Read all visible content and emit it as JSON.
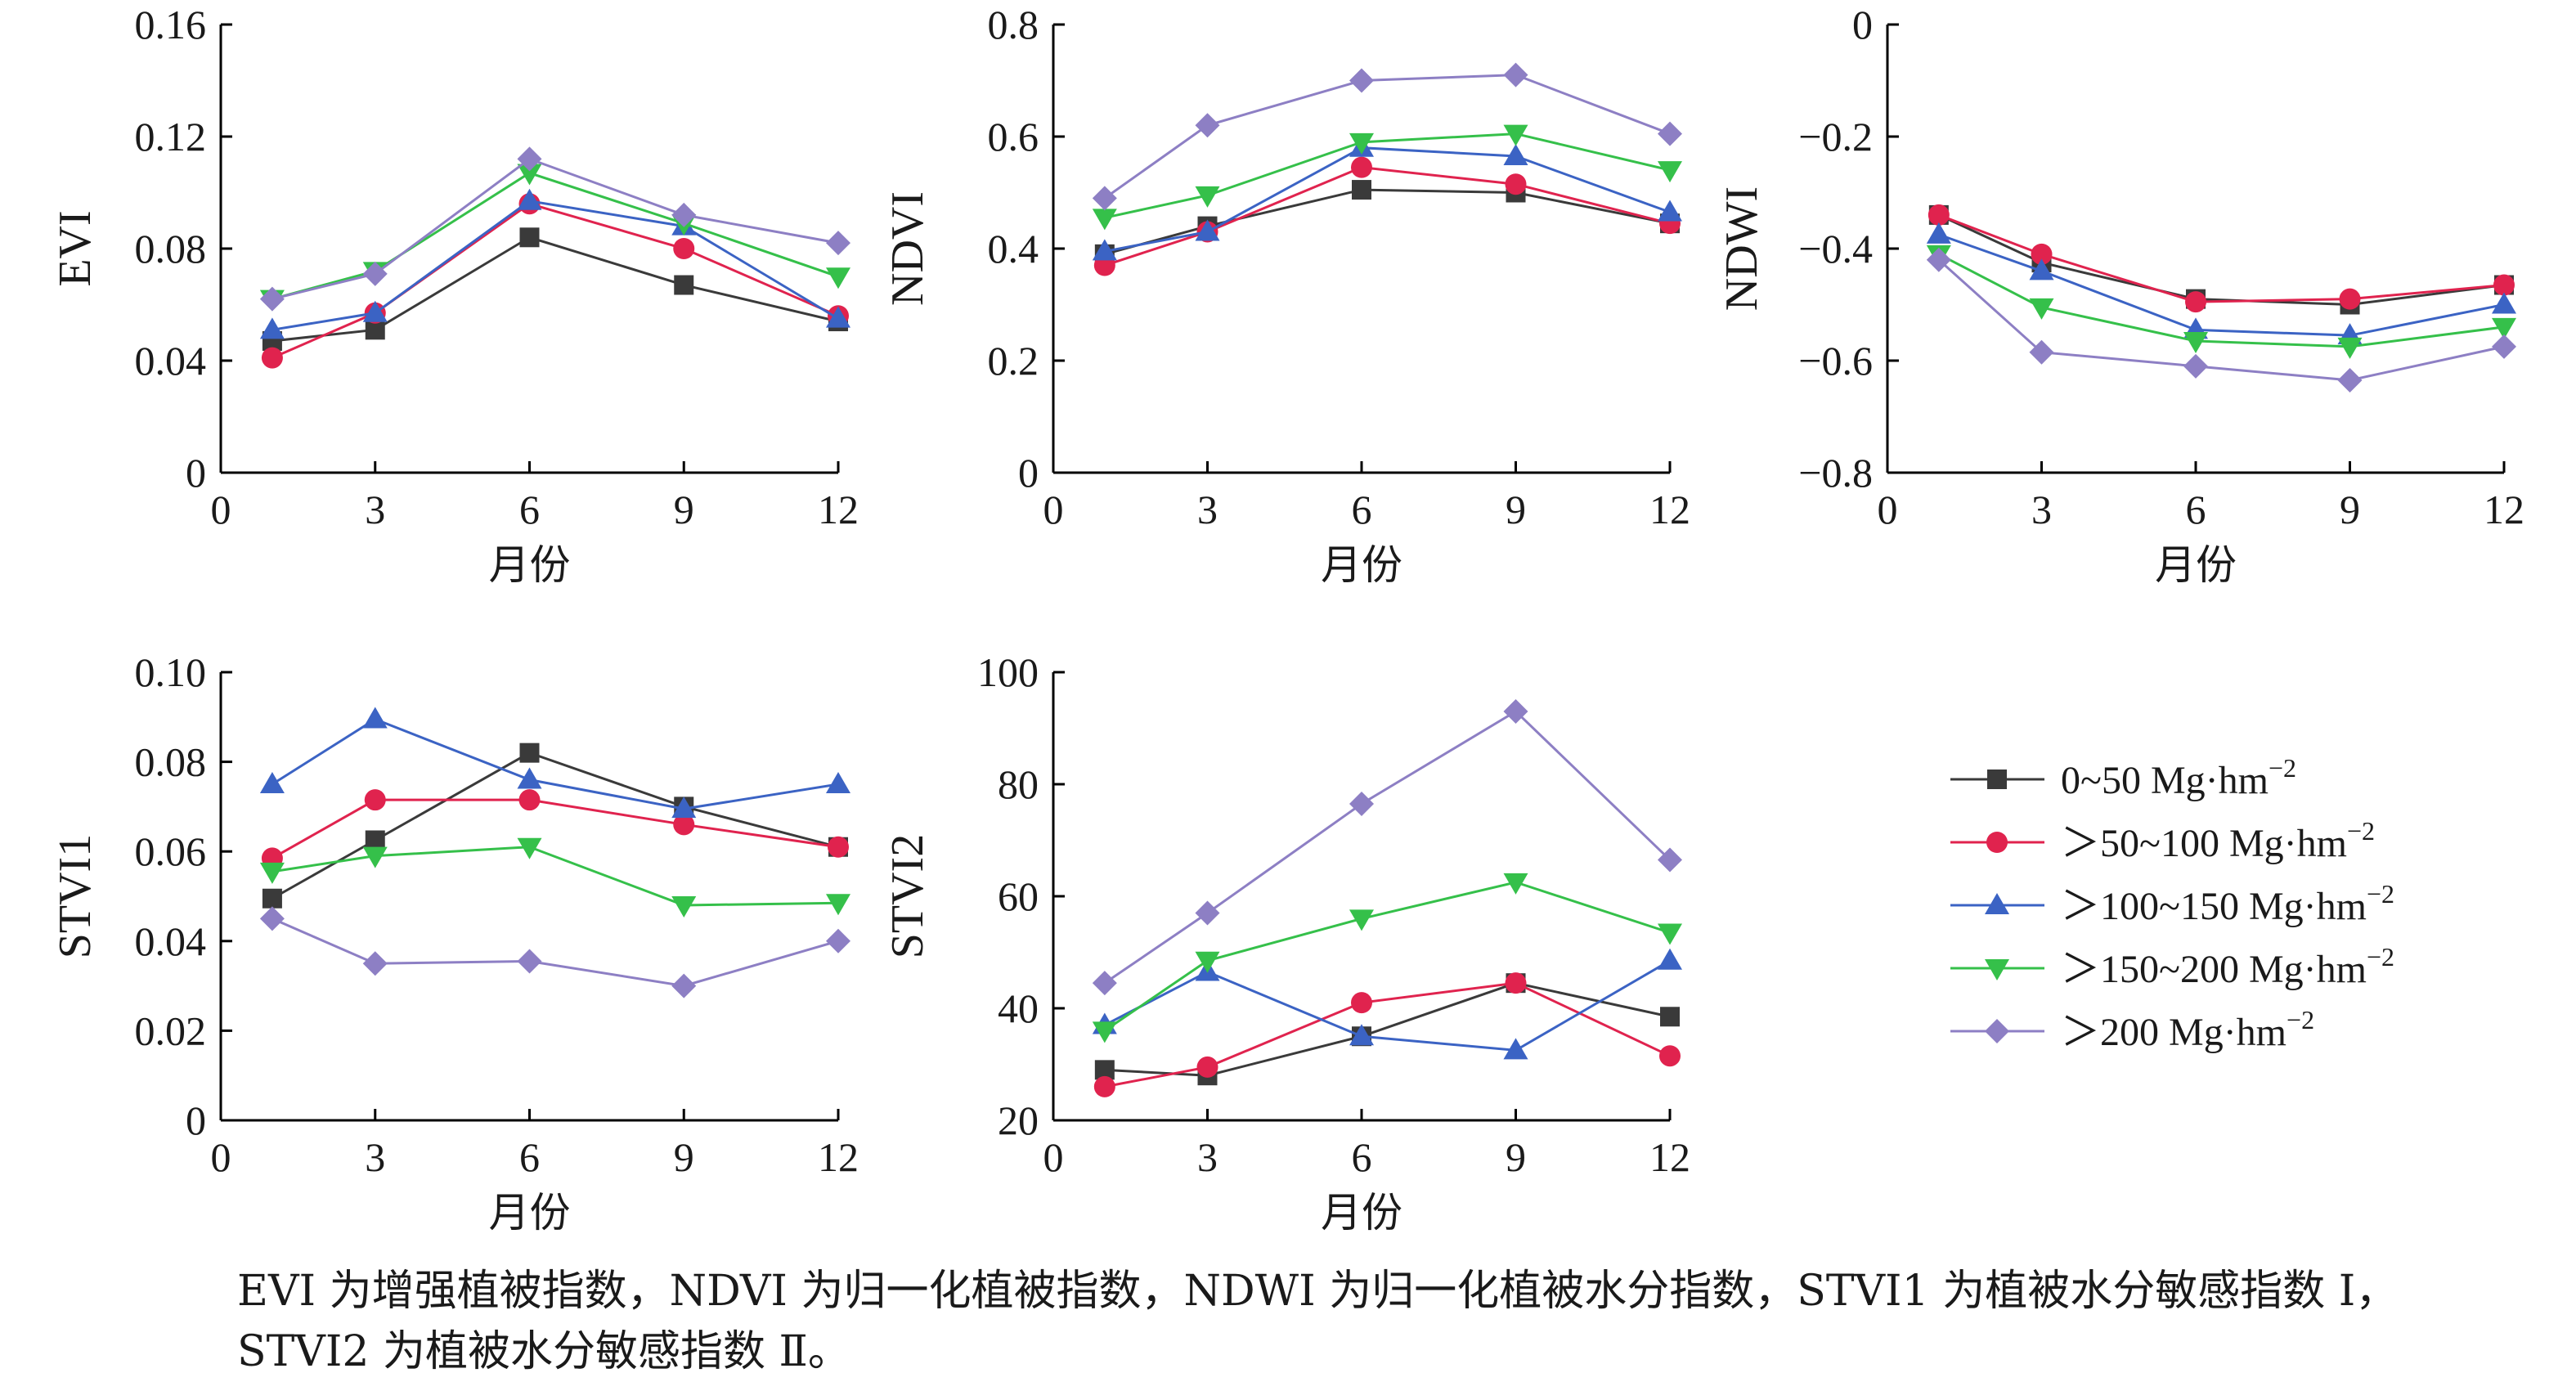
{
  "colors": {
    "0-50": "#3a3a3a",
    "50-100": "#e0234e",
    "100-150": "#3b63c4",
    "150-200": "#35c04a",
    "200+": "#8d7fc4",
    "axis": "#000000"
  },
  "chart_data": [
    {
      "type": "line",
      "ylabel": "EVI",
      "xlabel": "月份",
      "xlim": [
        0,
        12
      ],
      "xticks": [
        0,
        3,
        6,
        9,
        12
      ],
      "ylim": [
        0,
        0.16
      ],
      "yticks": [
        "0",
        "0.04",
        "0.08",
        "0.12",
        "0.16"
      ],
      "x": [
        1,
        3,
        6,
        9,
        12
      ],
      "series": [
        {
          "name": "0~50",
          "values": [
            0.047,
            0.051,
            0.084,
            0.067,
            0.054
          ]
        },
        {
          "name": ">50~100",
          "values": [
            0.041,
            0.057,
            0.096,
            0.08,
            0.056
          ]
        },
        {
          "name": ">100~150",
          "values": [
            0.051,
            0.057,
            0.097,
            0.088,
            0.055
          ]
        },
        {
          "name": ">150~200",
          "values": [
            0.062,
            0.072,
            0.107,
            0.089,
            0.07
          ]
        },
        {
          "name": ">200",
          "values": [
            0.062,
            0.071,
            0.112,
            0.092,
            0.082
          ]
        }
      ]
    },
    {
      "type": "line",
      "ylabel": "NDVI",
      "xlabel": "月份",
      "xlim": [
        0,
        12
      ],
      "xticks": [
        0,
        3,
        6,
        9,
        12
      ],
      "ylim": [
        0,
        0.8
      ],
      "yticks": [
        "0",
        "0.2",
        "0.4",
        "0.6",
        "0.8"
      ],
      "x": [
        1,
        3,
        6,
        9,
        12
      ],
      "series": [
        {
          "name": "0~50",
          "values": [
            0.39,
            0.44,
            0.505,
            0.5,
            0.445
          ]
        },
        {
          "name": ">50~100",
          "values": [
            0.37,
            0.43,
            0.545,
            0.515,
            0.445
          ]
        },
        {
          "name": ">100~150",
          "values": [
            0.395,
            0.43,
            0.58,
            0.565,
            0.465
          ]
        },
        {
          "name": ">150~200",
          "values": [
            0.455,
            0.495,
            0.59,
            0.605,
            0.54
          ]
        },
        {
          "name": ">200",
          "values": [
            0.49,
            0.62,
            0.7,
            0.71,
            0.605
          ]
        }
      ]
    },
    {
      "type": "line",
      "ylabel": "NDWI",
      "xlabel": "月份",
      "xlim": [
        0,
        12
      ],
      "xticks": [
        0,
        3,
        6,
        9,
        12
      ],
      "ylim": [
        -0.8,
        0
      ],
      "yticks": [
        "−0.8",
        "−0.6",
        "−0.4",
        "−0.2",
        "0"
      ],
      "x": [
        1,
        3,
        6,
        9,
        12
      ],
      "series": [
        {
          "name": "0~50",
          "values": [
            -0.34,
            -0.425,
            -0.49,
            -0.5,
            -0.465
          ]
        },
        {
          "name": ">50~100",
          "values": [
            -0.34,
            -0.41,
            -0.495,
            -0.49,
            -0.465
          ]
        },
        {
          "name": ">100~150",
          "values": [
            -0.375,
            -0.44,
            -0.545,
            -0.555,
            -0.5
          ]
        },
        {
          "name": ">150~200",
          "values": [
            -0.41,
            -0.505,
            -0.565,
            -0.575,
            -0.54
          ]
        },
        {
          "name": ">200",
          "values": [
            -0.42,
            -0.585,
            -0.61,
            -0.635,
            -0.575
          ]
        }
      ]
    },
    {
      "type": "line",
      "ylabel": "STVI1",
      "xlabel": "月份",
      "xlim": [
        0,
        12
      ],
      "xticks": [
        0,
        3,
        6,
        9,
        12
      ],
      "ylim": [
        0,
        0.1
      ],
      "yticks": [
        "0",
        "0.02",
        "0.04",
        "0.06",
        "0.08",
        "0.10"
      ],
      "x": [
        1,
        3,
        6,
        9,
        12
      ],
      "series": [
        {
          "name": "0~50",
          "values": [
            0.0495,
            0.0625,
            0.082,
            0.07,
            0.061
          ]
        },
        {
          "name": ">50~100",
          "values": [
            0.0585,
            0.0715,
            0.0715,
            0.066,
            0.061
          ]
        },
        {
          "name": ">100~150",
          "values": [
            0.075,
            0.0895,
            0.076,
            0.0695,
            0.075
          ]
        },
        {
          "name": ">150~200",
          "values": [
            0.0555,
            0.059,
            0.061,
            0.048,
            0.0485
          ]
        },
        {
          "name": ">200",
          "values": [
            0.045,
            0.035,
            0.0355,
            0.03,
            0.04
          ]
        }
      ]
    },
    {
      "type": "line",
      "ylabel": "STVI2",
      "xlabel": "月份",
      "xlim": [
        0,
        12
      ],
      "xticks": [
        0,
        3,
        6,
        9,
        12
      ],
      "ylim": [
        20,
        100
      ],
      "yticks": [
        "20",
        "40",
        "60",
        "80",
        "100"
      ],
      "x": [
        1,
        3,
        6,
        9,
        12
      ],
      "series": [
        {
          "name": "0~50",
          "values": [
            29,
            28,
            35,
            44.5,
            38.5
          ]
        },
        {
          "name": ">50~100",
          "values": [
            26,
            29.5,
            41,
            44.5,
            31.5
          ]
        },
        {
          "name": ">100~150",
          "values": [
            37,
            46.5,
            35,
            32.5,
            48.5
          ]
        },
        {
          "name": ">150~200",
          "values": [
            36,
            48.5,
            56,
            62.5,
            53.5
          ]
        },
        {
          "name": ">200",
          "values": [
            44.5,
            57,
            76.5,
            93,
            66.5
          ]
        }
      ]
    }
  ],
  "legend": {
    "unit": "Mg·hm",
    "unit_sup": "−2",
    "items": [
      {
        "key": "0-50",
        "marker": "square",
        "label": "0~50"
      },
      {
        "key": "50-100",
        "marker": "circle",
        "label": "＞50~100"
      },
      {
        "key": "100-150",
        "marker": "triangle-up",
        "label": "＞100~150"
      },
      {
        "key": "150-200",
        "marker": "triangle-down",
        "label": "＞150~200"
      },
      {
        "key": "200+",
        "marker": "diamond",
        "label": "＞200"
      }
    ]
  },
  "caption": {
    "line1": "EVI 为增强植被指数，NDVI 为归一化植被指数，NDWI 为归一化植被水分指数，STVI1 为植被水分敏感指数 Ⅰ，",
    "line2": "STVI2 为植被水分敏感指数 Ⅱ。"
  }
}
